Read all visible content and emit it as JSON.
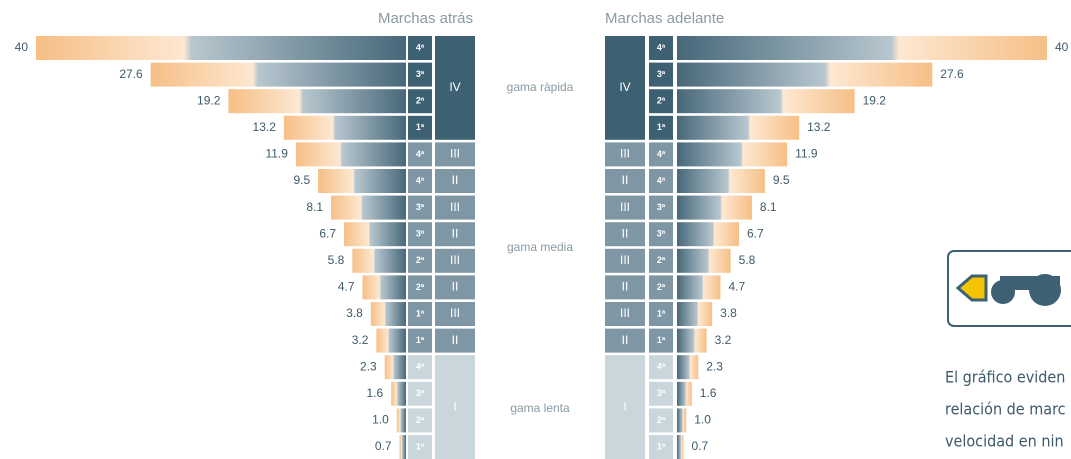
{
  "chart_data": {
    "type": "bar",
    "series": [
      {
        "name": "Marchas atrás",
        "values": [
          40,
          27.6,
          19.2,
          13.2,
          11.9,
          9.5,
          8.1,
          6.7,
          5.8,
          4.7,
          3.8,
          3.2,
          2.3,
          1.6,
          1.0,
          0.7
        ],
        "value_labels": [
          "40",
          "27.6",
          "19.2",
          "13.2",
          "11.9",
          "9.5",
          "8.1",
          "6.7",
          "5.8",
          "4.7",
          "3.8",
          "3.2",
          "2.3",
          "1.6",
          "1.0",
          "0.7"
        ]
      },
      {
        "name": "Marchas adelante",
        "values": [
          40,
          27.6,
          19.2,
          13.2,
          11.9,
          9.5,
          8.1,
          6.7,
          5.8,
          4.7,
          3.8,
          3.2,
          2.3,
          1.6,
          1.0,
          0.7
        ],
        "value_labels": [
          "40",
          "27.6",
          "19.2",
          "13.2",
          "11.9",
          "9.5",
          "8.1",
          "6.7",
          "5.8",
          "4.7",
          "3.8",
          "3.2",
          "2.3",
          "1.6",
          "1.0",
          "0.7"
        ]
      }
    ],
    "categories": [
      "4ª",
      "3ª",
      "2ª",
      "1ª",
      "4ª",
      "4ª",
      "3ª",
      "3ª",
      "2ª",
      "2ª",
      "1ª",
      "1ª",
      "4ª",
      "3ª",
      "2ª",
      "1ª"
    ],
    "ranges": [
      "IV",
      "IV",
      "IV",
      "IV",
      "III",
      "II",
      "III",
      "II",
      "III",
      "II",
      "III",
      "II",
      "I",
      "I",
      "I",
      "I"
    ],
    "groups": [
      "gama ràpida",
      "gama media",
      "gama lenta"
    ],
    "xlim": [
      0,
      40
    ]
  },
  "note": {
    "lines": [
      "El gráfico eviden",
      "relación de marc",
      "velocidad en nin"
    ]
  }
}
